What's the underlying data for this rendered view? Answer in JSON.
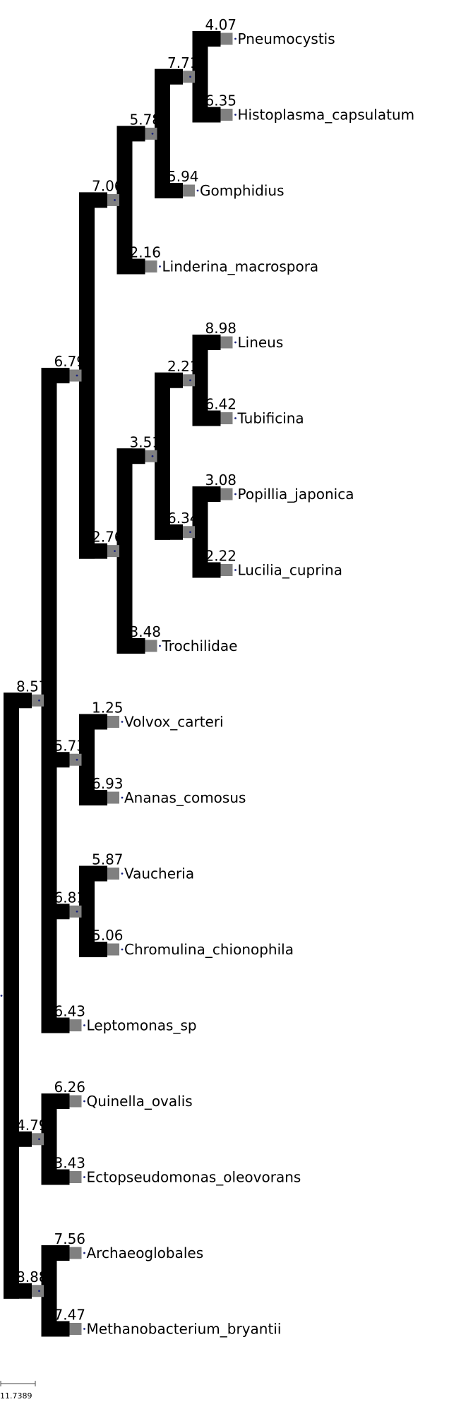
{
  "tree": {
    "value": "",
    "children": [
      {
        "value": "8.57",
        "children": [
          {
            "value": "6.79",
            "children": [
              {
                "value": "7.06",
                "children": [
                  {
                    "value": "5.78",
                    "children": [
                      {
                        "value": "7.71",
                        "children": [
                          {
                            "value": "4.07",
                            "label": "Pneumocystis"
                          },
                          {
                            "value": "6.35",
                            "label": "Histoplasma_capsulatum"
                          }
                        ]
                      },
                      {
                        "value": "5.94",
                        "label": "Gomphidius"
                      }
                    ]
                  },
                  {
                    "value": "2.16",
                    "label": "Linderina_macrospora"
                  }
                ]
              },
              {
                "value": "2.76",
                "children": [
                  {
                    "value": "3.51",
                    "children": [
                      {
                        "value": "2.21",
                        "children": [
                          {
                            "value": "8.98",
                            "label": "Lineus"
                          },
                          {
                            "value": "6.42",
                            "label": "Tubificina"
                          }
                        ]
                      },
                      {
                        "value": "6.34",
                        "children": [
                          {
                            "value": "3.08",
                            "label": "Popillia_japonica"
                          },
                          {
                            "value": "2.22",
                            "label": "Lucilia_cuprina"
                          }
                        ]
                      }
                    ]
                  },
                  {
                    "value": "3.48",
                    "label": "Trochilidae"
                  }
                ]
              }
            ]
          },
          {
            "value": "5.73",
            "children": [
              {
                "value": "1.25",
                "label": "Volvox_carteri"
              },
              {
                "value": "6.93",
                "label": "Ananas_comosus"
              }
            ]
          },
          {
            "value": "6.81",
            "children": [
              {
                "value": "5.87",
                "label": "Vaucheria"
              },
              {
                "value": "5.06",
                "label": "Chromulina_chionophila"
              }
            ]
          },
          {
            "value": "6.43",
            "label": "Leptomonas_sp"
          }
        ]
      },
      {
        "value": "4.79",
        "children": [
          {
            "value": "6.26",
            "label": "Quinella_ovalis"
          },
          {
            "value": "3.43",
            "label": "Ectopseudomonas_oleovorans"
          }
        ]
      },
      {
        "value": "8.88",
        "children": [
          {
            "value": "7.56",
            "label": "Archaeoglobales"
          },
          {
            "value": "7.47",
            "label": "Methanobacterium_bryantii"
          }
        ]
      }
    ]
  },
  "scale_bar": {
    "label": "11.7389"
  },
  "colors": {
    "branch": "#000000",
    "box": "#808080",
    "dot": "#1a237e"
  }
}
